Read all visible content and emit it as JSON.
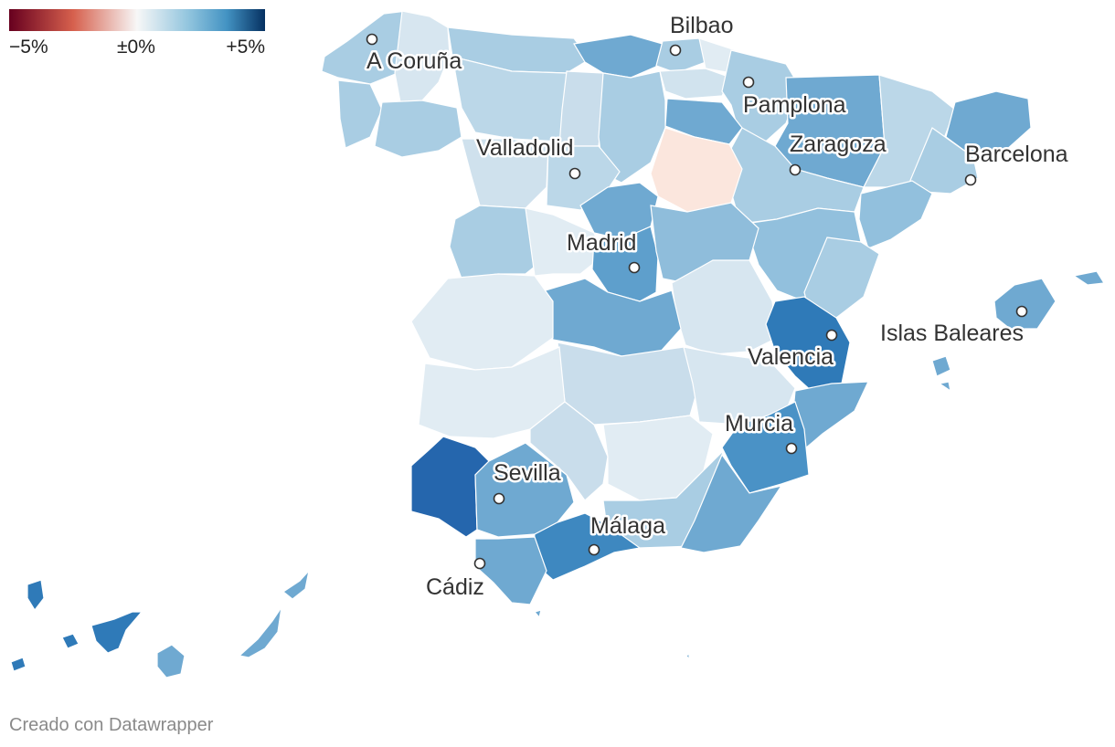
{
  "legend": {
    "min_label": "−5%",
    "mid_label": "±0%",
    "max_label": "+5%",
    "colors": [
      "#67001f",
      "#d6604d",
      "#f7f7f7",
      "#92c5de",
      "#4393c3",
      "#053061"
    ]
  },
  "cities": [
    {
      "name": "Bilbao"
    },
    {
      "name": "A Coruña"
    },
    {
      "name": "Pamplona"
    },
    {
      "name": "Zaragoza"
    },
    {
      "name": "Barcelona"
    },
    {
      "name": "Valladolid"
    },
    {
      "name": "Madrid"
    },
    {
      "name": "Islas Baleares"
    },
    {
      "name": "Valencia"
    },
    {
      "name": "Murcia"
    },
    {
      "name": "Sevilla"
    },
    {
      "name": "Málaga"
    },
    {
      "name": "Cádiz"
    }
  ],
  "footer": {
    "credit": "Creado con Datawrapper"
  }
}
